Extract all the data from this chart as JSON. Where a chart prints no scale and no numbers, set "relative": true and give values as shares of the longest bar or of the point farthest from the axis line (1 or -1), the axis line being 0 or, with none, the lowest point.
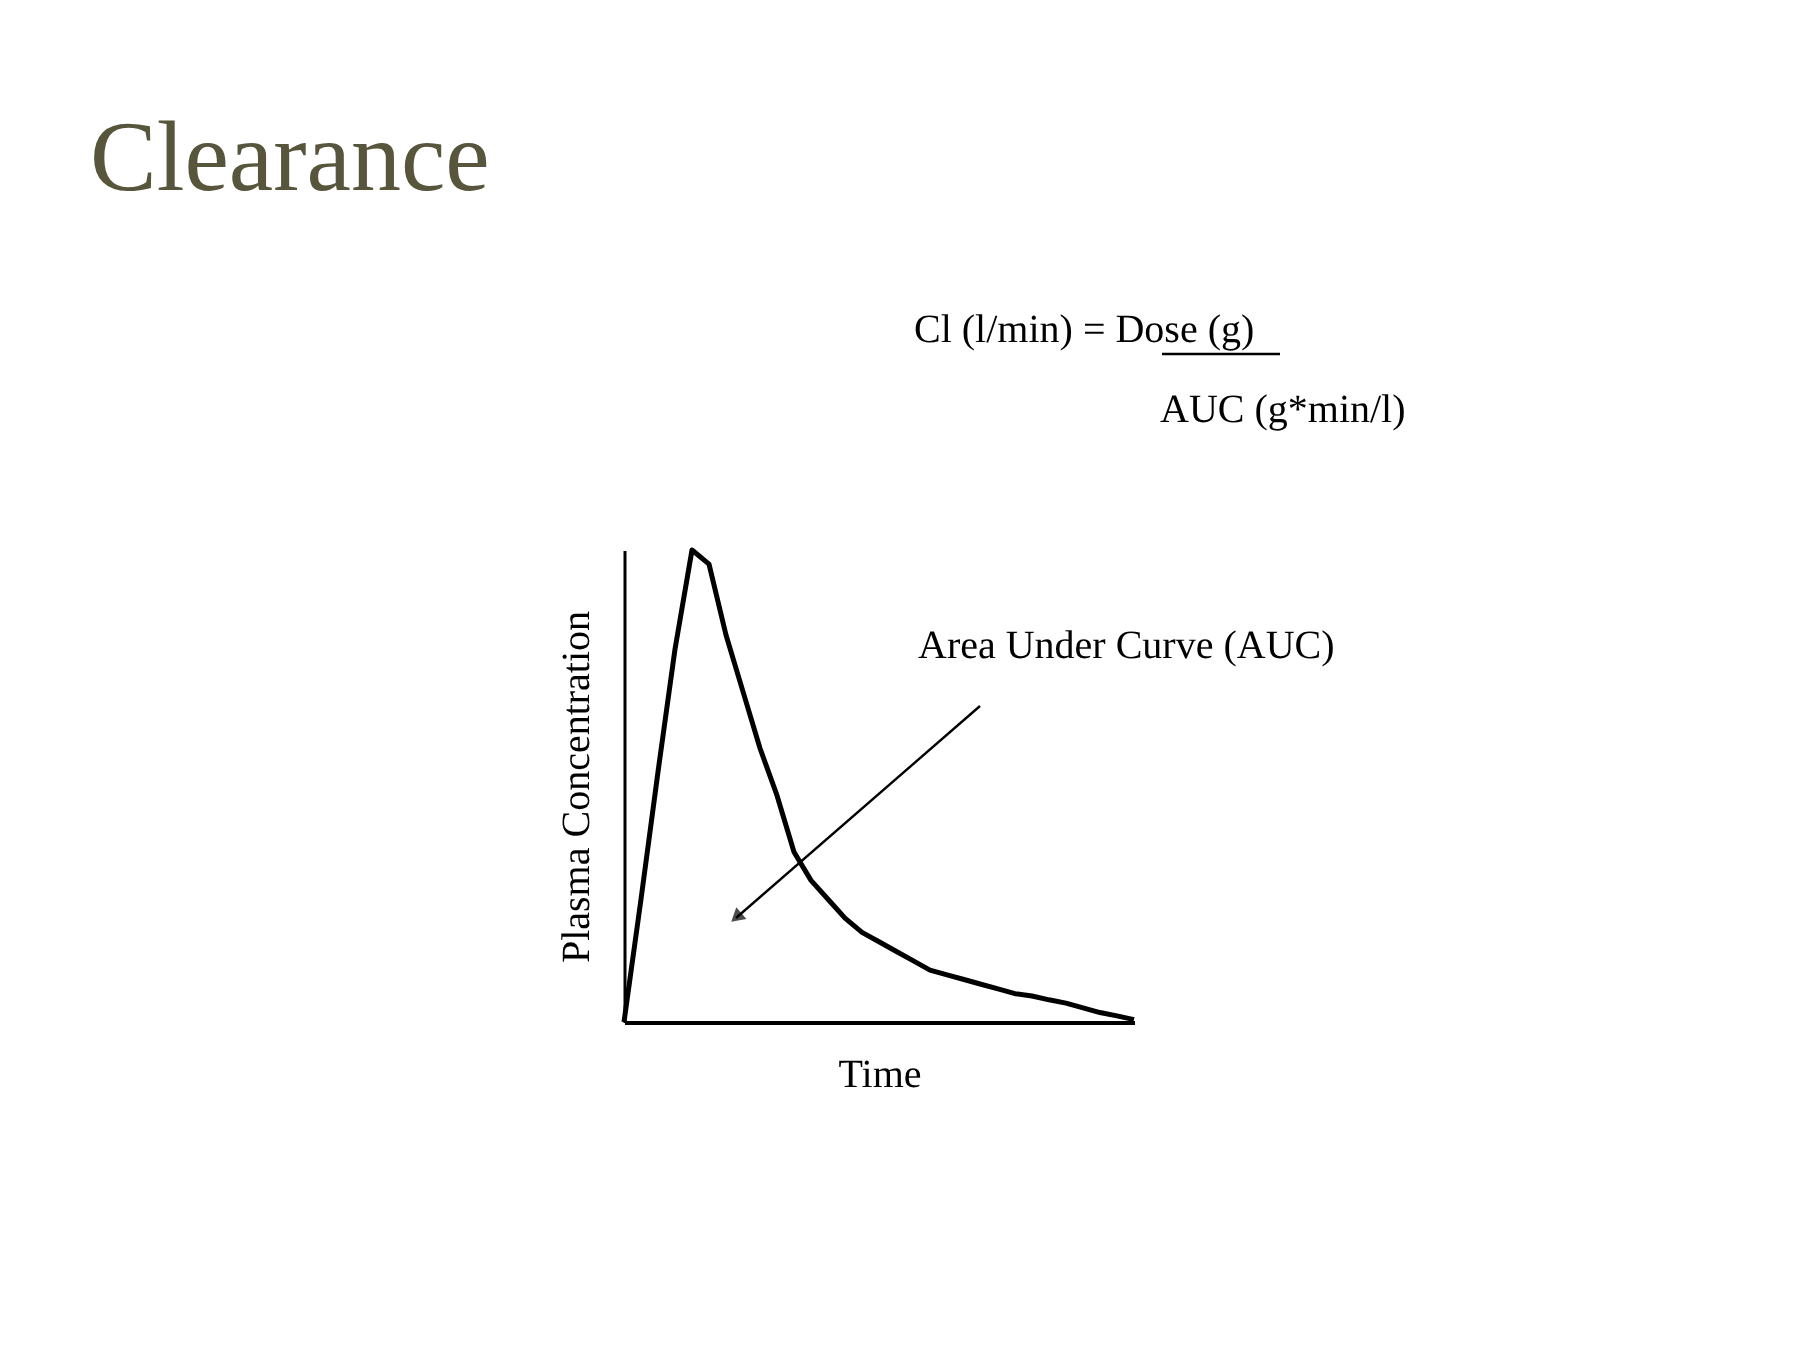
{
  "chart_data": {
    "type": "line",
    "title": "Clearance",
    "xlabel": "Time",
    "ylabel": "Plasma Concentration",
    "relative": true,
    "color": "#000000",
    "marker": "none",
    "line_style": "solid",
    "grid": false,
    "categories": [
      null,
      null,
      null,
      null,
      null,
      null,
      null,
      null,
      null,
      null,
      null,
      null,
      null,
      null,
      null,
      null,
      null,
      null,
      null,
      null,
      null,
      null,
      null,
      null,
      null,
      null,
      null,
      null,
      null,
      null,
      null
    ],
    "values": [
      0,
      0.26,
      0.53,
      0.79,
      1,
      0.97,
      0.82,
      0.7,
      0.58,
      0.48,
      0.36,
      0.3,
      0.26,
      0.22,
      0.19,
      0.17,
      0.15,
      0.13,
      0.11,
      0.1,
      0.09,
      0.08,
      0.07,
      0.06,
      0.055,
      0.047,
      0.04,
      0.03,
      0.02,
      0.013,
      0.005
    ],
    "annotations": [
      "Cl (l/min) = Dose (g)",
      "AUC (g*min/l)",
      "Area Under Curve (AUC)"
    ]
  }
}
